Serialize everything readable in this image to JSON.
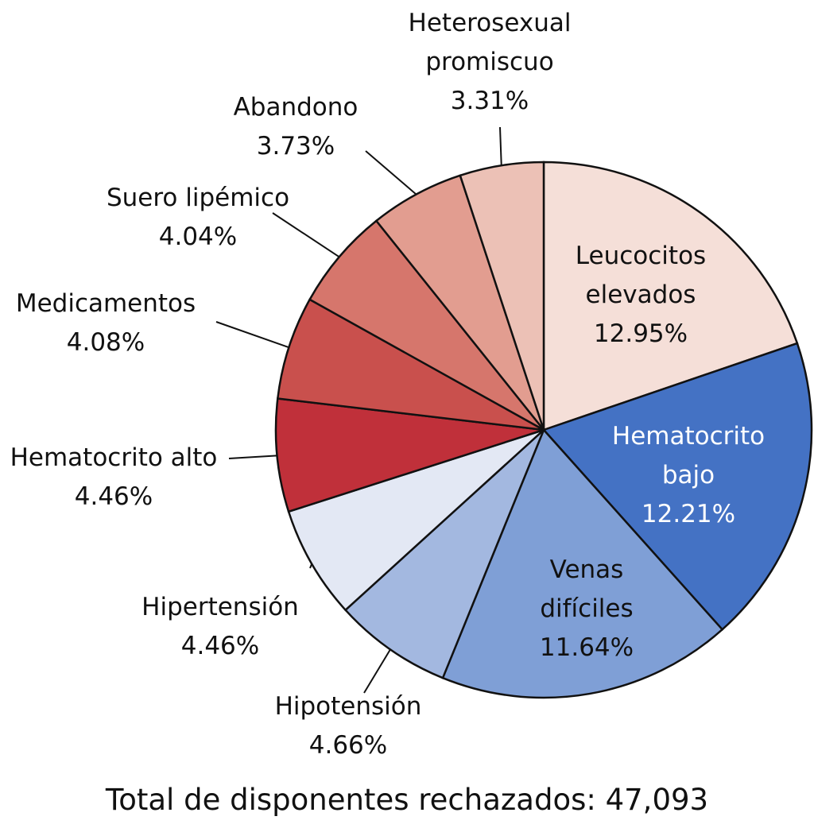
{
  "chart_data": {
    "type": "pie",
    "title": "Total de disponentes rechazados: 47,093",
    "categories": [
      "Leucocitos\nelevados",
      "Hematocrito\nbajo",
      "Venas\ndifíciles",
      "Hipotensión",
      "Hipertensión",
      "Hematocrito alto",
      "Medicamentos",
      "Suero lipémico",
      "Abandono",
      "Heterosexual\npromiscuo"
    ],
    "values": [
      12.95,
      12.21,
      11.64,
      4.66,
      4.46,
      4.46,
      4.08,
      4.04,
      3.73,
      3.31
    ],
    "value_labels": [
      "12.95%",
      "12.21%",
      "11.64%",
      "4.66%",
      "4.46%",
      "4.46%",
      "4.08%",
      "4.04%",
      "3.73%",
      "3.31%"
    ],
    "colors": [
      "#f5dfd8",
      "#4472c4",
      "#7f9fd6",
      "#a3b8e0",
      "#e3e8f4",
      "#c0303a",
      "#c9504d",
      "#d6766c",
      "#e29d90",
      "#ecc1b6"
    ]
  }
}
